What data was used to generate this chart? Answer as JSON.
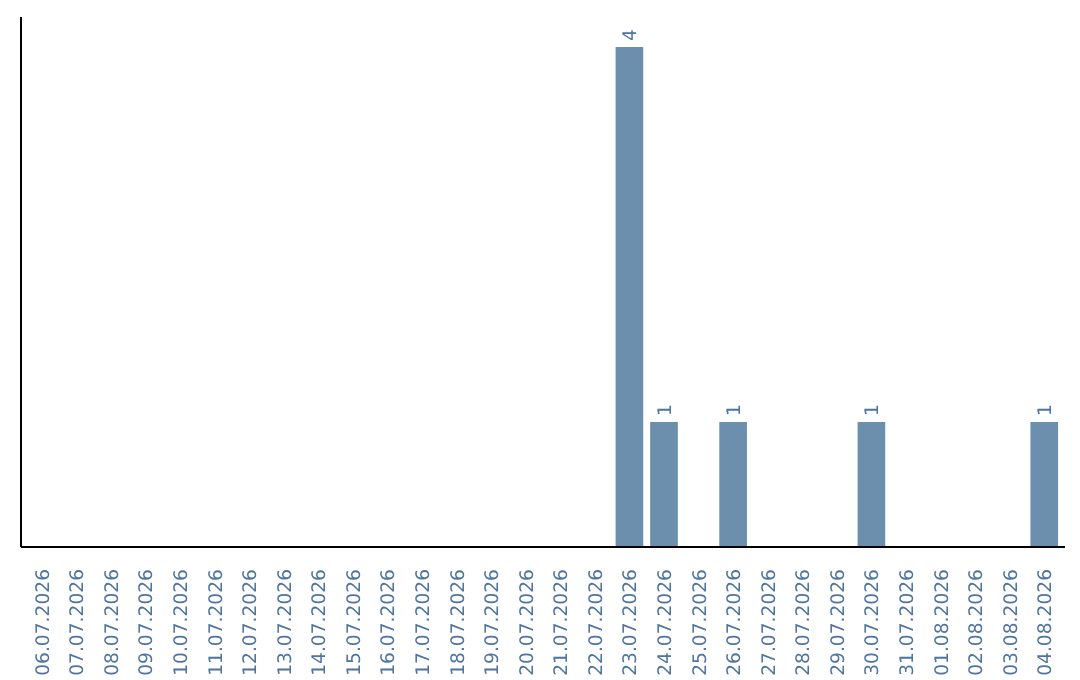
{
  "chart_data": {
    "type": "bar",
    "categories": [
      "06.07.2026",
      "07.07.2026",
      "08.07.2026",
      "09.07.2026",
      "10.07.2026",
      "11.07.2026",
      "12.07.2026",
      "13.07.2026",
      "14.07.2026",
      "15.07.2026",
      "16.07.2026",
      "17.07.2026",
      "18.07.2026",
      "19.07.2026",
      "20.07.2026",
      "21.07.2026",
      "22.07.2026",
      "23.07.2026",
      "24.07.2026",
      "25.07.2026",
      "26.07.2026",
      "27.07.2026",
      "28.07.2026",
      "29.07.2026",
      "30.07.2026",
      "31.07.2026",
      "01.08.2026",
      "02.08.2026",
      "03.08.2026",
      "04.08.2026"
    ],
    "values": [
      null,
      null,
      null,
      null,
      null,
      null,
      null,
      null,
      null,
      null,
      null,
      null,
      null,
      null,
      null,
      null,
      null,
      4,
      1,
      null,
      1,
      null,
      null,
      null,
      1,
      null,
      null,
      null,
      null,
      1
    ],
    "data_labels": true,
    "color": "#6d8fae",
    "grid": false,
    "tick_labels": "x"
  }
}
